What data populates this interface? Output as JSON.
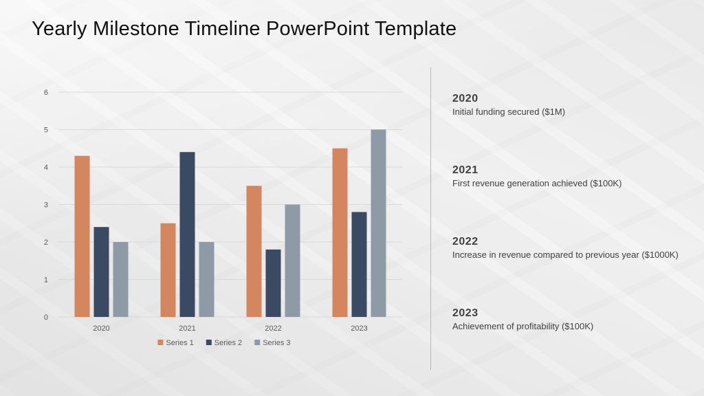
{
  "page": {
    "title": "Yearly Milestone Timeline PowerPoint Template"
  },
  "milestones": [
    {
      "year": "2020",
      "text": "Initial funding secured ($1M)"
    },
    {
      "year": "2021",
      "text": "First revenue generation achieved ($100K)"
    },
    {
      "year": "2022",
      "text": "Increase in revenue compared to previous year ($1000K)"
    },
    {
      "year": "2023",
      "text": "Achievement of profitability ($100K)"
    }
  ],
  "chart_data": {
    "type": "bar",
    "title": "",
    "xlabel": "",
    "ylabel": "",
    "categories": [
      "2020",
      "2021",
      "2022",
      "2023"
    ],
    "series": [
      {
        "name": "Series 1",
        "values": [
          4.3,
          2.5,
          3.5,
          4.5
        ],
        "color": "#d4875f"
      },
      {
        "name": "Series 2",
        "values": [
          2.4,
          4.4,
          1.8,
          2.8
        ],
        "color": "#3a4a63"
      },
      {
        "name": "Series 3",
        "values": [
          2.0,
          2.0,
          3.0,
          5.0
        ],
        "color": "#8e9aa6"
      }
    ],
    "ylim": [
      0,
      6
    ],
    "yticks": [
      "0",
      "1",
      "2",
      "3",
      "4",
      "5",
      "6"
    ],
    "grid": true,
    "legend_position": "bottom"
  },
  "colors": {
    "grid": "#d9d9d9",
    "axis_text": "#595959",
    "text": "#404040"
  }
}
